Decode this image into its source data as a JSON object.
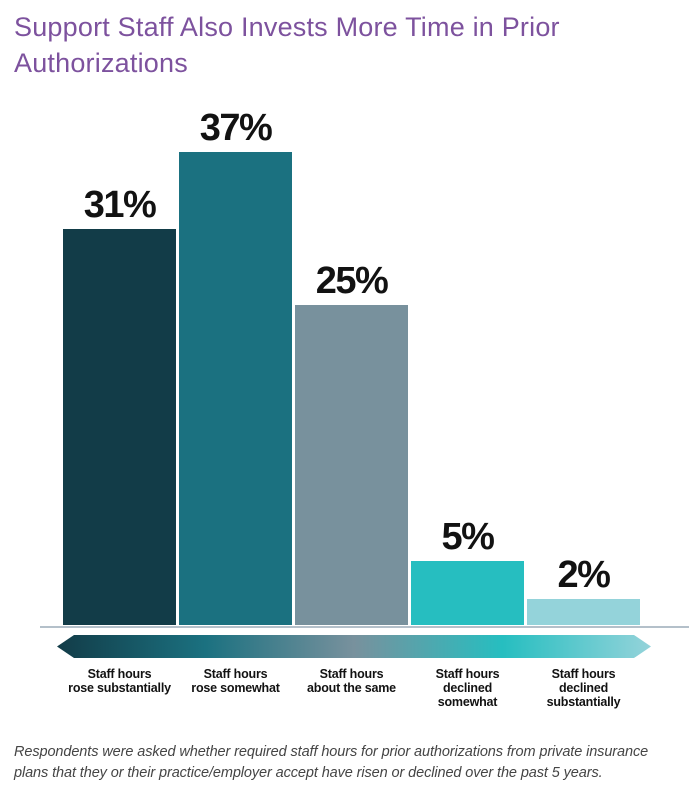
{
  "title": "Support Staff Also Invests More Time in Prior Authorizations",
  "footnote": "Respondents were asked whether required staff hours for prior authorizations from private insurance plans that they or their practice/employer accept have risen or declined over the past 5 years.",
  "colors": {
    "title_text": "#7d529e",
    "value_text": "#121212",
    "category_text": "#121212",
    "footnote_text": "#454545",
    "baseline": "#b4c0ca",
    "background": "#ffffff"
  },
  "chart_data": {
    "type": "bar",
    "title": "Support Staff Also Invests More Time in Prior Authorizations",
    "categories": [
      "Staff hours\nrose substantially",
      "Staff hours\nrose somewhat",
      "Staff hours\nabout the same",
      "Staff hours\ndeclined\nsomewhat",
      "Staff hours\ndeclined\nsubstantially"
    ],
    "values": [
      31,
      37,
      25,
      5,
      2
    ],
    "value_labels": [
      "31%",
      "37%",
      "25%",
      "5%",
      "2%"
    ],
    "bar_colors": [
      "#123c48",
      "#1b7180",
      "#78919d",
      "#26bec0",
      "#94d3da"
    ],
    "xlabel": "",
    "ylabel": "",
    "ylim": [
      0,
      40
    ],
    "grid": false,
    "legend": false,
    "value_label_position": "above-bar",
    "annotation": "double-headed gradient arrow under axis spanning all categories"
  }
}
